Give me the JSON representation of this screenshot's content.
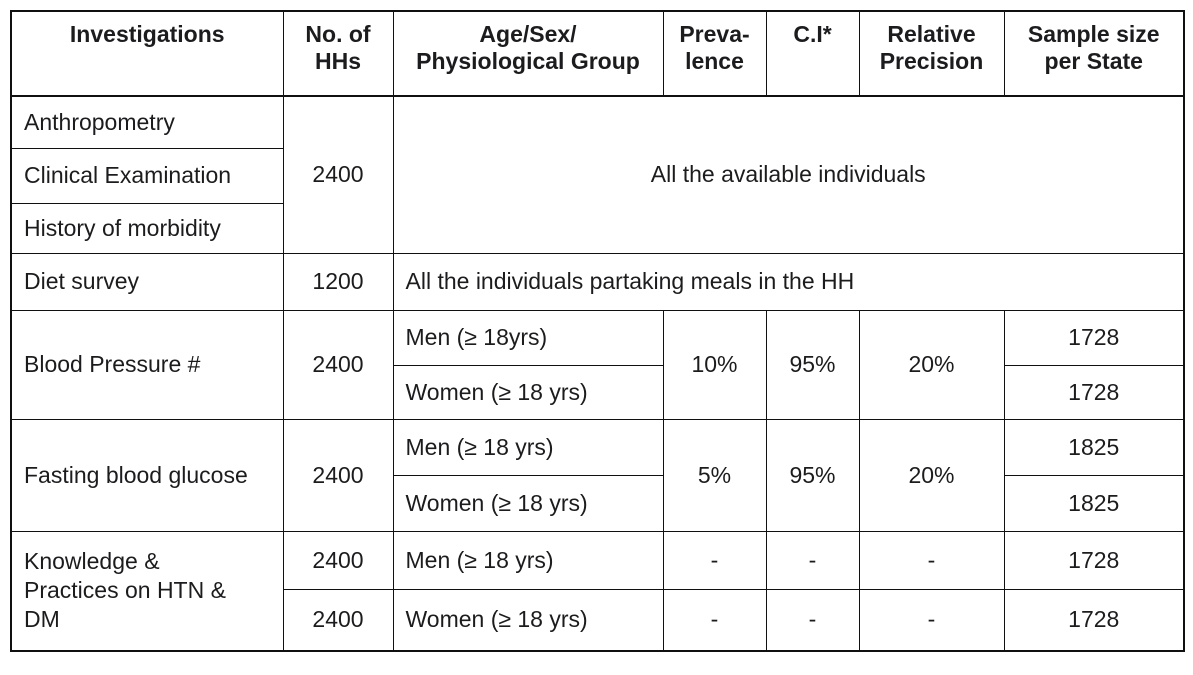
{
  "colors": {
    "background": "#ffffff",
    "text": "#1c1c1e",
    "border": "#101010"
  },
  "table": {
    "columns": [
      {
        "key": "investigations",
        "label": [
          "Investigations"
        ]
      },
      {
        "key": "no_of_hhs",
        "label": [
          "No. of",
          "HHs"
        ]
      },
      {
        "key": "age_sex_group",
        "label": [
          "Age/Sex/",
          "Physiological Group"
        ]
      },
      {
        "key": "prevalence",
        "label": [
          "Preva-",
          "lence"
        ]
      },
      {
        "key": "ci",
        "label": [
          "C.I*"
        ]
      },
      {
        "key": "relative_precision",
        "label": [
          "Relative",
          "Precision"
        ]
      },
      {
        "key": "sample_size",
        "label": [
          "Sample size",
          "per State"
        ]
      }
    ],
    "rows": {
      "anthropometry": {
        "investigation": "Anthropometry"
      },
      "clinical": {
        "investigation": "Clinical Examination"
      },
      "history": {
        "investigation": "History of morbidity"
      },
      "anthro_block": {
        "hhs": "2400",
        "group": "All the available individuals"
      },
      "diet": {
        "investigation": "Diet survey",
        "hhs": "1200",
        "group": "All the individuals partaking meals in the HH"
      },
      "blood_pressure": {
        "investigation": "Blood Pressure #",
        "hhs": "2400",
        "prevalence": "10%",
        "ci": "95%",
        "precision": "20%",
        "men": {
          "group": "Men (≥ 18yrs)",
          "sample": "1728"
        },
        "women": {
          "group": "Women (≥ 18 yrs)",
          "sample": "1728"
        }
      },
      "fasting_glucose": {
        "investigation": "Fasting blood glucose",
        "hhs": "2400",
        "prevalence": "5%",
        "ci": "95%",
        "precision": "20%",
        "men": {
          "group": "Men (≥ 18 yrs)",
          "sample": "1825"
        },
        "women": {
          "group": "Women (≥ 18 yrs)",
          "sample": "1825"
        }
      },
      "knowledge": {
        "investigation": [
          "Knowledge &",
          "Practices on HTN &",
          "DM"
        ],
        "men": {
          "hhs": "2400",
          "group": "Men (≥ 18 yrs)",
          "prevalence": "-",
          "ci": "-",
          "precision": "-",
          "sample": "1728"
        },
        "women": {
          "hhs": "2400",
          "group": "Women (≥ 18 yrs)",
          "prevalence": "-",
          "ci": "-",
          "precision": "-",
          "sample": "1728"
        }
      }
    }
  }
}
